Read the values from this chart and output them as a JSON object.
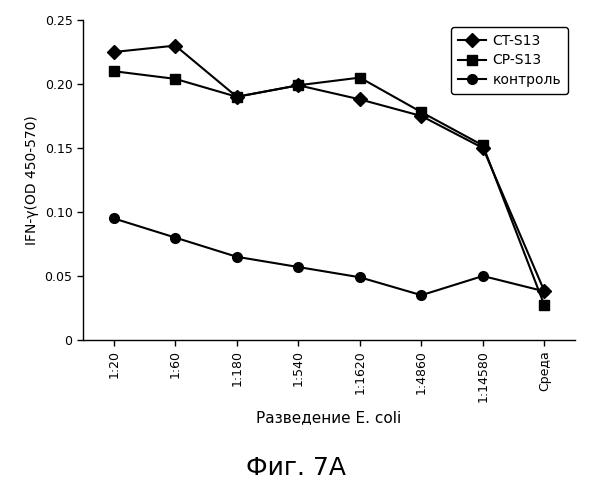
{
  "x_labels": [
    "1:20",
    "1:60",
    "1:180",
    "1:540",
    "1:1620",
    "1:4860",
    "1:14580",
    "Среда"
  ],
  "ct_s13": [
    0.225,
    0.23,
    0.19,
    0.199,
    0.188,
    0.175,
    0.15,
    0.038
  ],
  "cp_s13": [
    0.21,
    0.204,
    0.19,
    0.199,
    0.205,
    0.178,
    0.152,
    0.027
  ],
  "kontrol": [
    0.095,
    0.08,
    0.065,
    0.057,
    0.049,
    0.035,
    0.05,
    0.038
  ],
  "legend_ct": "CT-S13",
  "legend_cp": "CP-S13",
  "legend_k": "контроль",
  "ylabel": "IFN-γ(OD 450-570)",
  "xlabel": "Разведение E. coli",
  "title": "Фиг. 7A",
  "ylim": [
    0,
    0.25
  ],
  "ytick_vals": [
    0,
    0.05,
    0.1,
    0.15,
    0.2,
    0.25
  ],
  "ytick_labels": [
    "0",
    "0.05",
    "0.10",
    "0.15",
    "0.20",
    "0.25"
  ],
  "line_color": "#000000",
  "bg_color": "#ffffff",
  "marker_size": 7,
  "linewidth": 1.5
}
